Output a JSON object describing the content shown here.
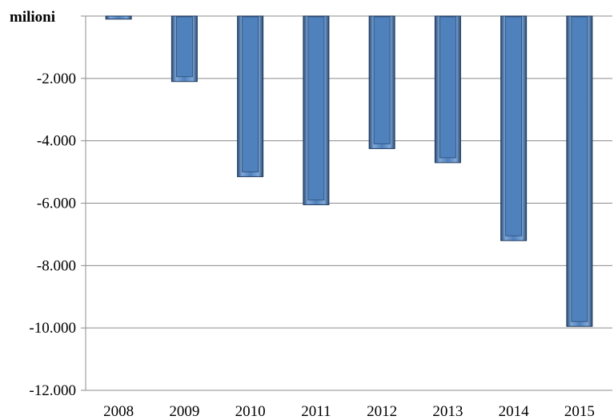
{
  "chart_data": {
    "type": "bar",
    "unit_label": "milioni",
    "categories": [
      "2008",
      "2009",
      "2010",
      "2011",
      "2012",
      "2013",
      "2014",
      "2015"
    ],
    "values": [
      -100,
      -2100,
      -5150,
      -6050,
      -4250,
      -4700,
      -7200,
      -9950
    ],
    "ylim": [
      -12000,
      0
    ],
    "y_ticks": [
      0,
      -2000,
      -4000,
      -6000,
      -8000,
      -10000,
      -12000
    ],
    "y_tick_labels": [
      "",
      "-2.000",
      "-4.000",
      "-6.000",
      "-8.000",
      "-10.000",
      "-12.000"
    ],
    "grid": true,
    "legend": "none",
    "colors": {
      "bar_fill": "#4f81bd",
      "bar_light": "#7fa7d9",
      "bar_dark": "#2c4d75",
      "bar_outline": "#1f3a5c",
      "grid": "#8c8c8c"
    }
  }
}
